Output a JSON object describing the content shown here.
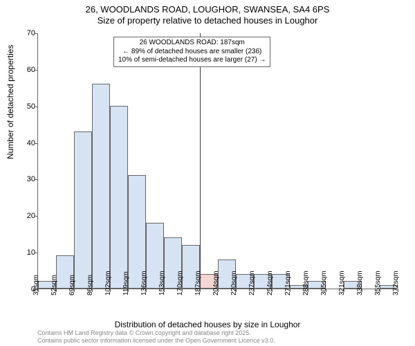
{
  "title": {
    "line1": "26, WOODLANDS ROAD, LOUGHOR, SWANSEA, SA4 6PS",
    "line2": "Size of property relative to detached houses in Loughor",
    "fontsize": 13
  },
  "chart": {
    "type": "histogram",
    "ylabel": "Number of detached properties",
    "xlabel": "Distribution of detached houses by size in Loughor",
    "ylim": [
      0,
      70
    ],
    "ytick_step": 10,
    "yticks": [
      0,
      10,
      20,
      30,
      40,
      50,
      60,
      70
    ],
    "xlabels": [
      "35sqm",
      "52sqm",
      "69sqm",
      "86sqm",
      "102sqm",
      "119sqm",
      "136sqm",
      "153sqm",
      "170sqm",
      "187sqm",
      "204sqm",
      "220sqm",
      "237sqm",
      "254sqm",
      "271sqm",
      "288sqm",
      "305sqm",
      "321sqm",
      "338sqm",
      "355sqm",
      "372sqm"
    ],
    "bars": [
      {
        "value": 2,
        "highlight": false
      },
      {
        "value": 9,
        "highlight": false
      },
      {
        "value": 43,
        "highlight": false
      },
      {
        "value": 56,
        "highlight": false
      },
      {
        "value": 50,
        "highlight": false
      },
      {
        "value": 31,
        "highlight": false
      },
      {
        "value": 18,
        "highlight": false
      },
      {
        "value": 14,
        "highlight": false
      },
      {
        "value": 12,
        "highlight": false
      },
      {
        "value": 4,
        "highlight": true
      },
      {
        "value": 8,
        "highlight": false
      },
      {
        "value": 4,
        "highlight": false
      },
      {
        "value": 4,
        "highlight": false
      },
      {
        "value": 4,
        "highlight": false
      },
      {
        "value": 1,
        "highlight": false
      },
      {
        "value": 2,
        "highlight": false
      },
      {
        "value": 0,
        "highlight": false
      },
      {
        "value": 2,
        "highlight": false
      },
      {
        "value": 0,
        "highlight": false
      },
      {
        "value": 1,
        "highlight": false
      }
    ],
    "bar_color": "#d6e3f3",
    "bar_highlight_color": "#f6d5d5",
    "bar_border_color": "#666666",
    "marker_color": "#cc0000",
    "background_color": "#ffffff",
    "label_fontsize": 12,
    "tick_fontsize": 11
  },
  "annotation": {
    "line1": "26 WOODLANDS ROAD: 187sqm",
    "line2": "← 89% of detached houses are smaller (236)",
    "line3": "10% of semi-detached houses are larger (27) →",
    "fontsize": 10,
    "border_color": "#666666"
  },
  "footer": {
    "line1": "Contains HM Land Registry data © Crown copyright and database right 2025.",
    "line2": "Contains public sector information licensed under the Open Government Licence v3.0.",
    "color": "#888888",
    "fontsize": 9
  }
}
